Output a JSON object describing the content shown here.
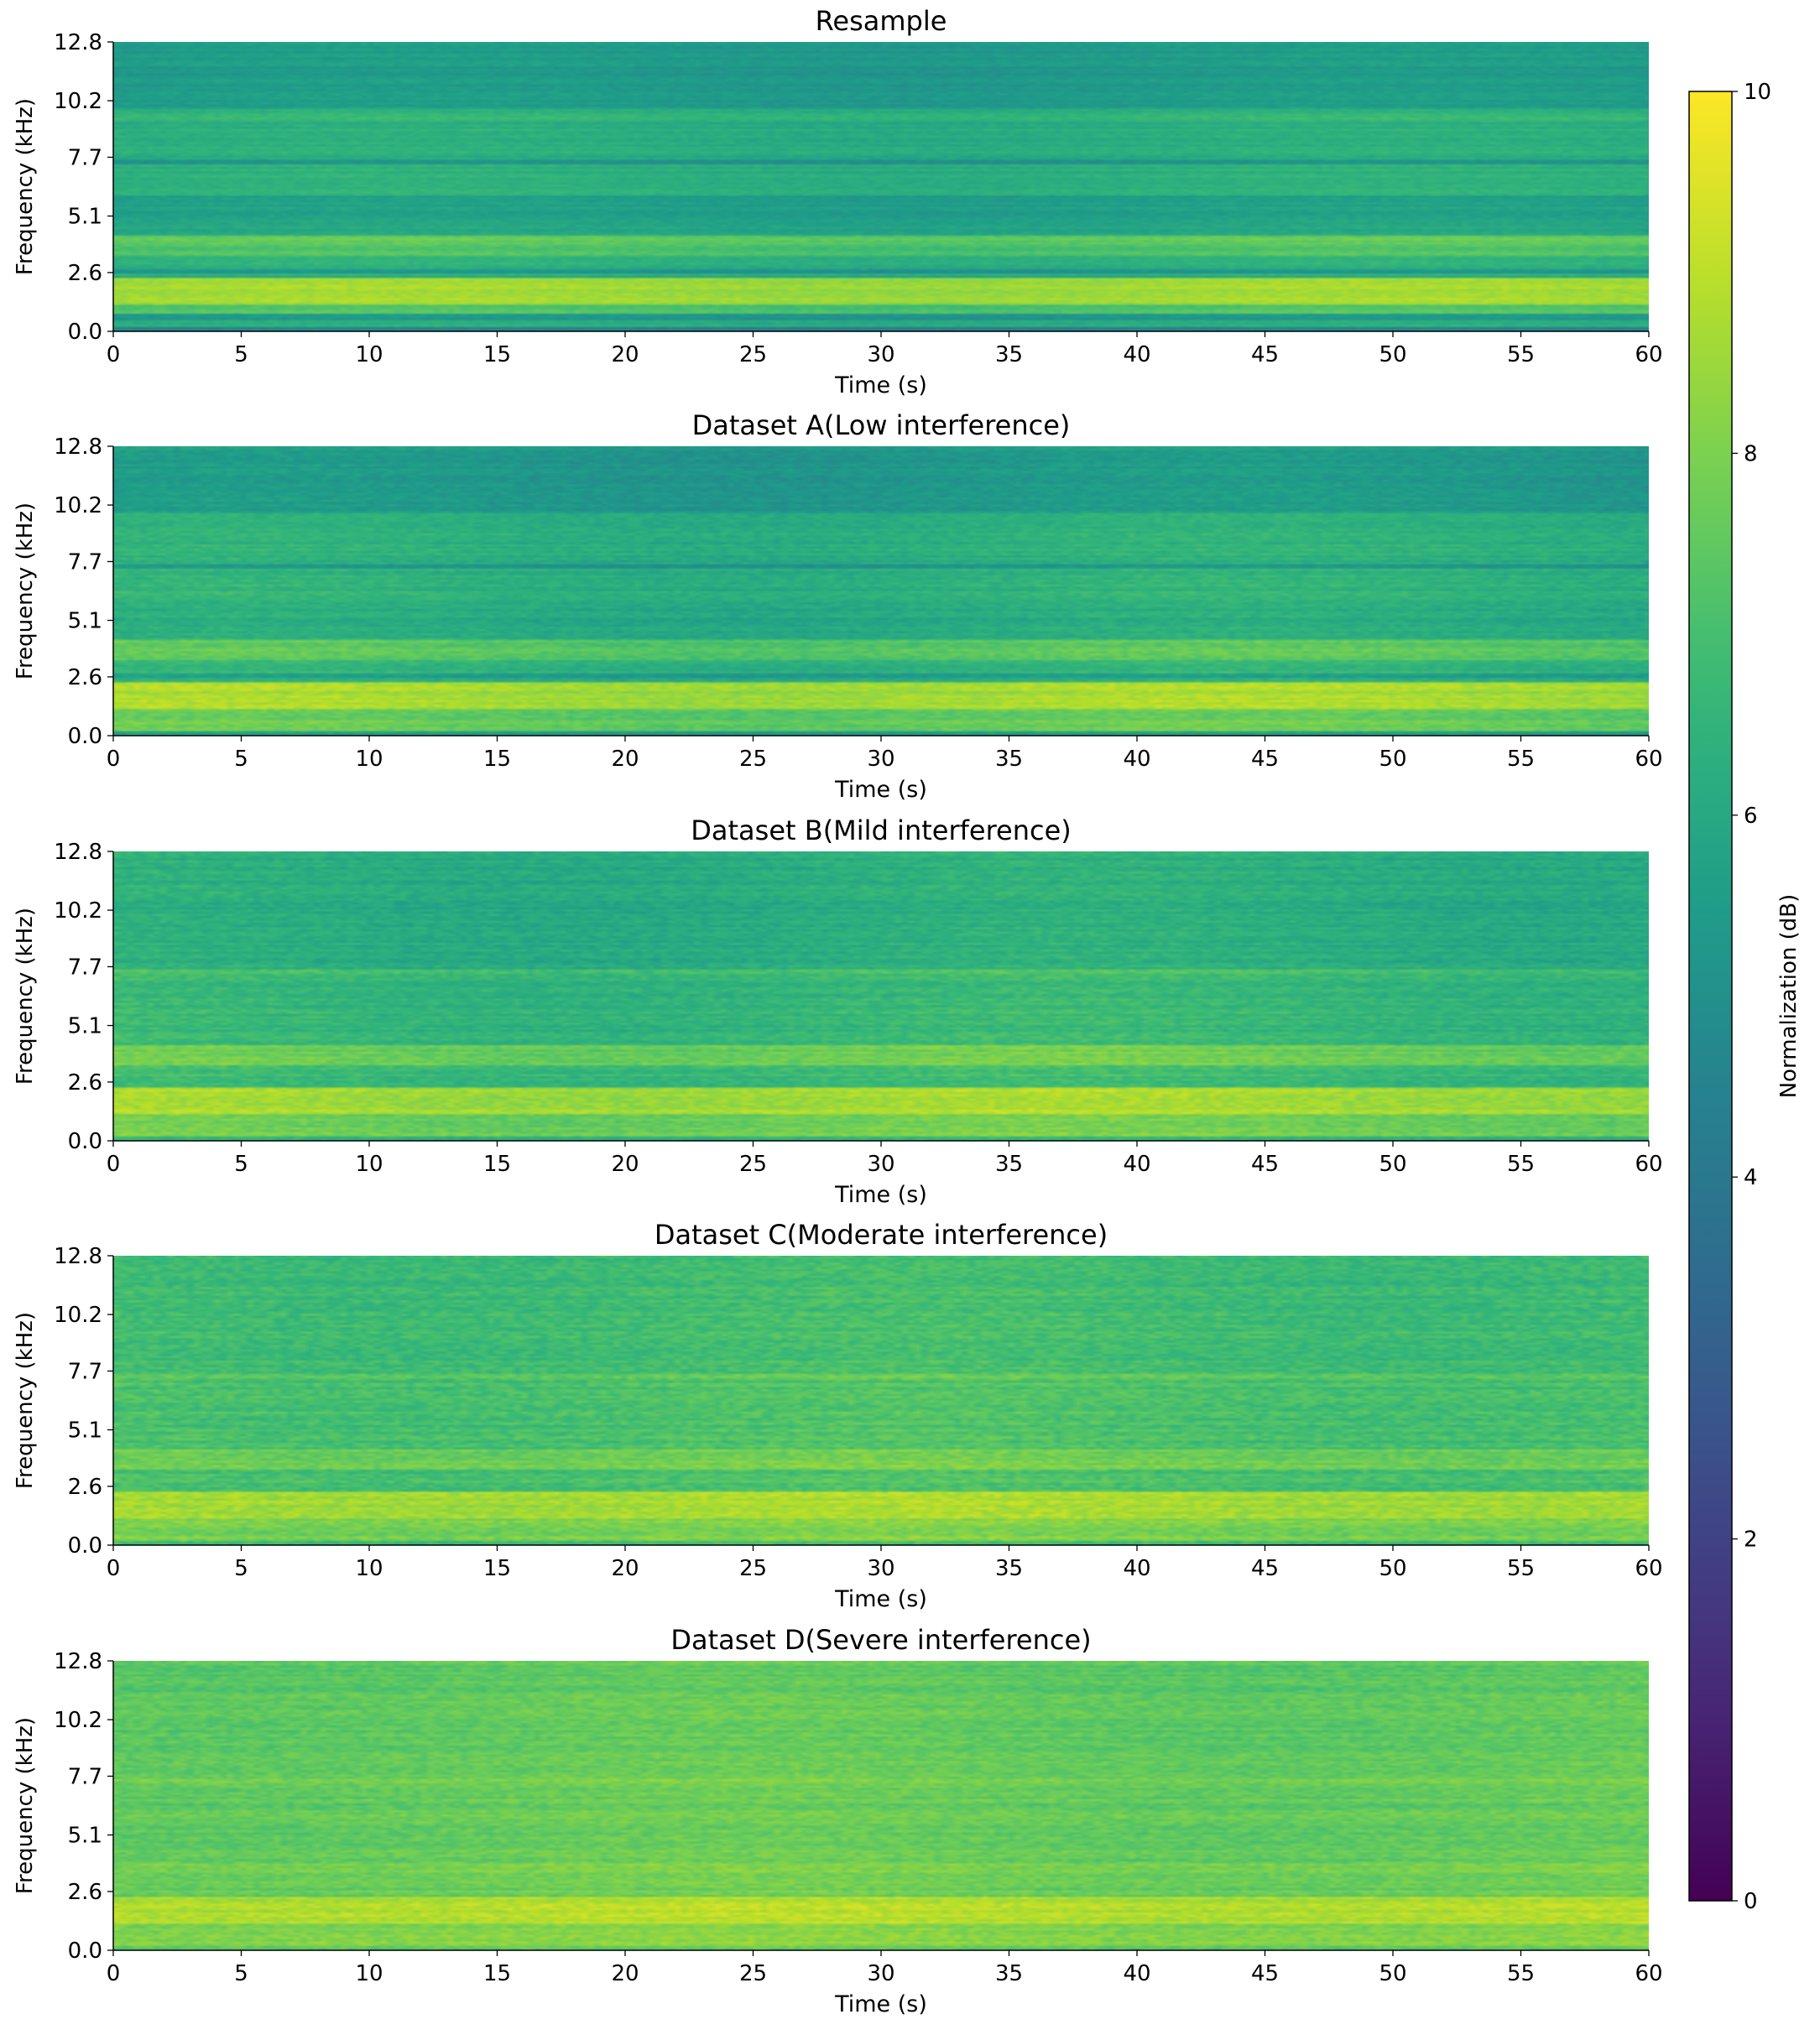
{
  "chart_data": {
    "type": "heatmap",
    "colormap": "viridis",
    "shared_x": {
      "label": "Time (s)",
      "range": [
        0,
        60
      ],
      "ticks": [
        0,
        5,
        10,
        15,
        20,
        25,
        30,
        35,
        40,
        45,
        50,
        55,
        60
      ],
      "tick_labels": [
        "0",
        "5",
        "10",
        "15",
        "20",
        "25",
        "30",
        "35",
        "40",
        "45",
        "50",
        "55",
        "60"
      ]
    },
    "shared_y": {
      "label": "Frequency (kHz)",
      "range": [
        0,
        12.8
      ],
      "ticks": [
        0.0,
        2.6,
        5.1,
        7.7,
        10.2,
        12.8
      ],
      "tick_labels": [
        "0.0",
        "2.6",
        "5.1",
        "7.7",
        "10.2",
        "12.8"
      ]
    },
    "colorbar": {
      "label": "Normalization (dB)",
      "range": [
        0,
        10
      ],
      "ticks": [
        0,
        2,
        4,
        6,
        8,
        10
      ],
      "tick_labels": [
        "0",
        "2",
        "4",
        "6",
        "8",
        "10"
      ]
    },
    "panels": [
      {
        "title": "Resample",
        "noise": 0.25,
        "time_variation": 0.15,
        "bands": [
          {
            "from": 0.0,
            "to": 0.2,
            "level": 4.6
          },
          {
            "from": 0.2,
            "to": 0.5,
            "level": 6.3
          },
          {
            "from": 0.5,
            "to": 0.8,
            "level": 5.2
          },
          {
            "from": 0.8,
            "to": 1.2,
            "level": 7.2
          },
          {
            "from": 1.2,
            "to": 2.4,
            "level": 8.6
          },
          {
            "from": 2.4,
            "to": 2.6,
            "level": 6.2
          },
          {
            "from": 2.6,
            "to": 2.8,
            "level": 5.2
          },
          {
            "from": 2.8,
            "to": 3.3,
            "level": 6.3
          },
          {
            "from": 3.3,
            "to": 3.8,
            "level": 7.2
          },
          {
            "from": 3.8,
            "to": 4.2,
            "level": 7.6
          },
          {
            "from": 4.2,
            "to": 5.0,
            "level": 5.9
          },
          {
            "from": 5.0,
            "to": 6.0,
            "level": 5.6
          },
          {
            "from": 6.0,
            "to": 7.4,
            "level": 6.3
          },
          {
            "from": 7.4,
            "to": 7.6,
            "level": 4.9
          },
          {
            "from": 7.6,
            "to": 9.3,
            "level": 6.2
          },
          {
            "from": 9.3,
            "to": 9.8,
            "level": 6.5
          },
          {
            "from": 9.8,
            "to": 12.8,
            "level": 5.4
          }
        ]
      },
      {
        "title": "Dataset A(Low interference)",
        "noise": 0.35,
        "time_variation": 0.2,
        "bands": [
          {
            "from": 0.0,
            "to": 0.2,
            "level": 5.5
          },
          {
            "from": 0.2,
            "to": 1.2,
            "level": 7.6
          },
          {
            "from": 1.2,
            "to": 2.4,
            "level": 8.6
          },
          {
            "from": 2.4,
            "to": 2.6,
            "level": 6.3
          },
          {
            "from": 2.6,
            "to": 2.8,
            "level": 5.6
          },
          {
            "from": 2.8,
            "to": 3.3,
            "level": 6.4
          },
          {
            "from": 3.3,
            "to": 4.2,
            "level": 7.4
          },
          {
            "from": 4.2,
            "to": 6.0,
            "level": 6.1
          },
          {
            "from": 6.0,
            "to": 7.4,
            "level": 6.4
          },
          {
            "from": 7.4,
            "to": 7.6,
            "level": 5.3
          },
          {
            "from": 7.6,
            "to": 9.3,
            "level": 6.3
          },
          {
            "from": 9.3,
            "to": 9.8,
            "level": 6.2
          },
          {
            "from": 9.8,
            "to": 12.8,
            "level": 5.4
          }
        ]
      },
      {
        "title": "Dataset B(Mild interference)",
        "noise": 0.4,
        "time_variation": 0.2,
        "bands": [
          {
            "from": 0.0,
            "to": 0.2,
            "level": 6.5
          },
          {
            "from": 0.2,
            "to": 1.2,
            "level": 7.9
          },
          {
            "from": 1.2,
            "to": 2.4,
            "level": 8.7
          },
          {
            "from": 2.4,
            "to": 2.8,
            "level": 6.6
          },
          {
            "from": 2.8,
            "to": 3.3,
            "level": 6.8
          },
          {
            "from": 3.3,
            "to": 4.2,
            "level": 7.7
          },
          {
            "from": 4.2,
            "to": 7.4,
            "level": 6.6
          },
          {
            "from": 7.4,
            "to": 7.6,
            "level": 7.3
          },
          {
            "from": 7.6,
            "to": 12.8,
            "level": 6.2
          }
        ]
      },
      {
        "title": "Dataset C(Moderate interference)",
        "noise": 0.45,
        "time_variation": 0.15,
        "bands": [
          {
            "from": 0.0,
            "to": 0.2,
            "level": 7.0
          },
          {
            "from": 0.2,
            "to": 1.2,
            "level": 8.0
          },
          {
            "from": 1.2,
            "to": 2.4,
            "level": 8.7
          },
          {
            "from": 2.4,
            "to": 3.3,
            "level": 7.1
          },
          {
            "from": 3.3,
            "to": 4.2,
            "level": 7.8
          },
          {
            "from": 4.2,
            "to": 7.4,
            "level": 7.1
          },
          {
            "from": 7.4,
            "to": 7.6,
            "level": 7.6
          },
          {
            "from": 7.6,
            "to": 12.8,
            "level": 6.9
          }
        ]
      },
      {
        "title": "Dataset D(Severe interference)",
        "noise": 0.4,
        "time_variation": 0.12,
        "bands": [
          {
            "from": 0.0,
            "to": 0.2,
            "level": 7.6
          },
          {
            "from": 0.2,
            "to": 1.2,
            "level": 8.2
          },
          {
            "from": 1.2,
            "to": 2.4,
            "level": 8.8
          },
          {
            "from": 2.4,
            "to": 3.3,
            "level": 7.7
          },
          {
            "from": 3.3,
            "to": 3.8,
            "level": 8.0
          },
          {
            "from": 3.8,
            "to": 7.4,
            "level": 7.6
          },
          {
            "from": 7.4,
            "to": 7.6,
            "level": 7.9
          },
          {
            "from": 7.6,
            "to": 12.8,
            "level": 7.5
          }
        ]
      }
    ]
  }
}
